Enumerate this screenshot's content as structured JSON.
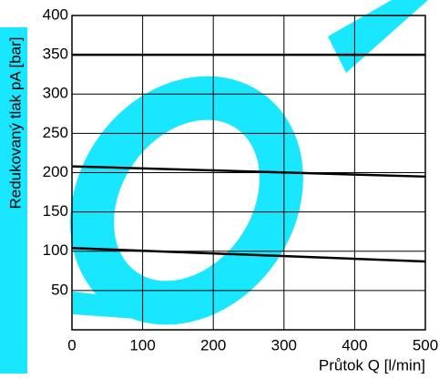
{
  "chart_data": {
    "type": "line",
    "x_label": "Průtok Q [l/min]",
    "y_label": "Redukovaný tlak pA [bar]",
    "x": [
      0,
      500
    ],
    "series": [
      {
        "color": "#000000",
        "values": [
          350,
          350
        ]
      },
      {
        "color": "#000000",
        "values": [
          208,
          195
        ]
      },
      {
        "color": "#000000",
        "values": [
          104,
          87
        ]
      }
    ],
    "xlim": [
      0,
      500
    ],
    "xticks": [
      0,
      100,
      200,
      300,
      400,
      500
    ],
    "ylim": [
      0,
      400
    ],
    "yticks": [
      50,
      100,
      150,
      200,
      250,
      300,
      350,
      400
    ],
    "grid": true
  }
}
